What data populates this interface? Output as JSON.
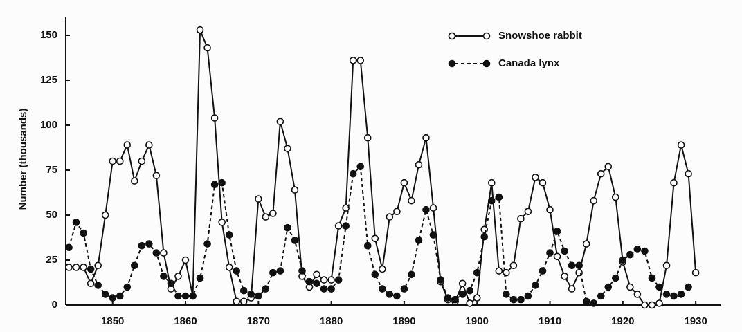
{
  "chart_data": {
    "type": "line",
    "y_label": "Number (thousands)",
    "x": [
      1844,
      1845,
      1846,
      1847,
      1848,
      1849,
      1850,
      1851,
      1852,
      1853,
      1854,
      1855,
      1856,
      1857,
      1858,
      1859,
      1860,
      1861,
      1862,
      1863,
      1864,
      1865,
      1866,
      1867,
      1868,
      1869,
      1870,
      1871,
      1872,
      1873,
      1874,
      1875,
      1876,
      1877,
      1878,
      1879,
      1880,
      1881,
      1882,
      1883,
      1884,
      1885,
      1886,
      1887,
      1888,
      1889,
      1890,
      1891,
      1892,
      1893,
      1894,
      1895,
      1896,
      1897,
      1898,
      1899,
      1900,
      1901,
      1902,
      1903,
      1904,
      1905,
      1906,
      1907,
      1908,
      1909,
      1910,
      1911,
      1912,
      1913,
      1914,
      1915,
      1916,
      1917,
      1918,
      1919,
      1920,
      1921,
      1922,
      1923,
      1924,
      1925,
      1926,
      1927,
      1928,
      1929,
      1930
    ],
    "series": [
      {
        "name": "Snowshoe rabbit",
        "color": "#111111",
        "marker": "open",
        "dashed": false,
        "values": [
          21,
          21,
          21,
          12,
          22,
          50,
          80,
          80,
          89,
          69,
          80,
          89,
          72,
          29,
          9,
          16,
          25,
          5,
          153,
          143,
          104,
          46,
          21,
          2,
          2,
          4,
          59,
          49,
          51,
          102,
          87,
          64,
          16,
          10,
          17,
          14,
          14,
          44,
          54,
          136,
          136,
          93,
          37,
          20,
          49,
          52,
          68,
          58,
          78,
          93,
          54,
          13,
          3,
          2,
          12,
          1,
          4,
          42,
          68,
          19,
          18,
          22,
          48,
          52,
          71,
          68,
          53,
          27,
          16,
          9,
          18,
          34,
          58,
          73,
          77,
          60,
          24,
          10,
          6,
          0,
          0,
          1,
          22,
          68,
          89,
          73,
          18
        ]
      },
      {
        "name": "Canada lynx",
        "color": "#111111",
        "marker": "filled",
        "dashed": true,
        "values": [
          32,
          46,
          40,
          20,
          11,
          6,
          4,
          5,
          10,
          22,
          33,
          34,
          29,
          16,
          12,
          5,
          5,
          5,
          15,
          34,
          67,
          68,
          39,
          19,
          8,
          6,
          5,
          9,
          18,
          19,
          43,
          36,
          19,
          13,
          12,
          9,
          9,
          14,
          44,
          73,
          77,
          33,
          17,
          9,
          6,
          5,
          9,
          17,
          36,
          53,
          39,
          14,
          4,
          3,
          6,
          8,
          18,
          38,
          58,
          60,
          6,
          3,
          3,
          5,
          11,
          19,
          29,
          41,
          30,
          22,
          22,
          2,
          1,
          5,
          10,
          15,
          25,
          28,
          31,
          30,
          15,
          10,
          6,
          5,
          6,
          10,
          null
        ]
      }
    ],
    "xlim": [
      1843,
      1933.5
    ],
    "xticks": [
      1850,
      1860,
      1870,
      1880,
      1890,
      1900,
      1910,
      1920,
      1930
    ],
    "ylim": [
      0,
      160
    ],
    "yticks": [
      0,
      25,
      50,
      75,
      100,
      125,
      150
    ],
    "legend": "top-right"
  }
}
